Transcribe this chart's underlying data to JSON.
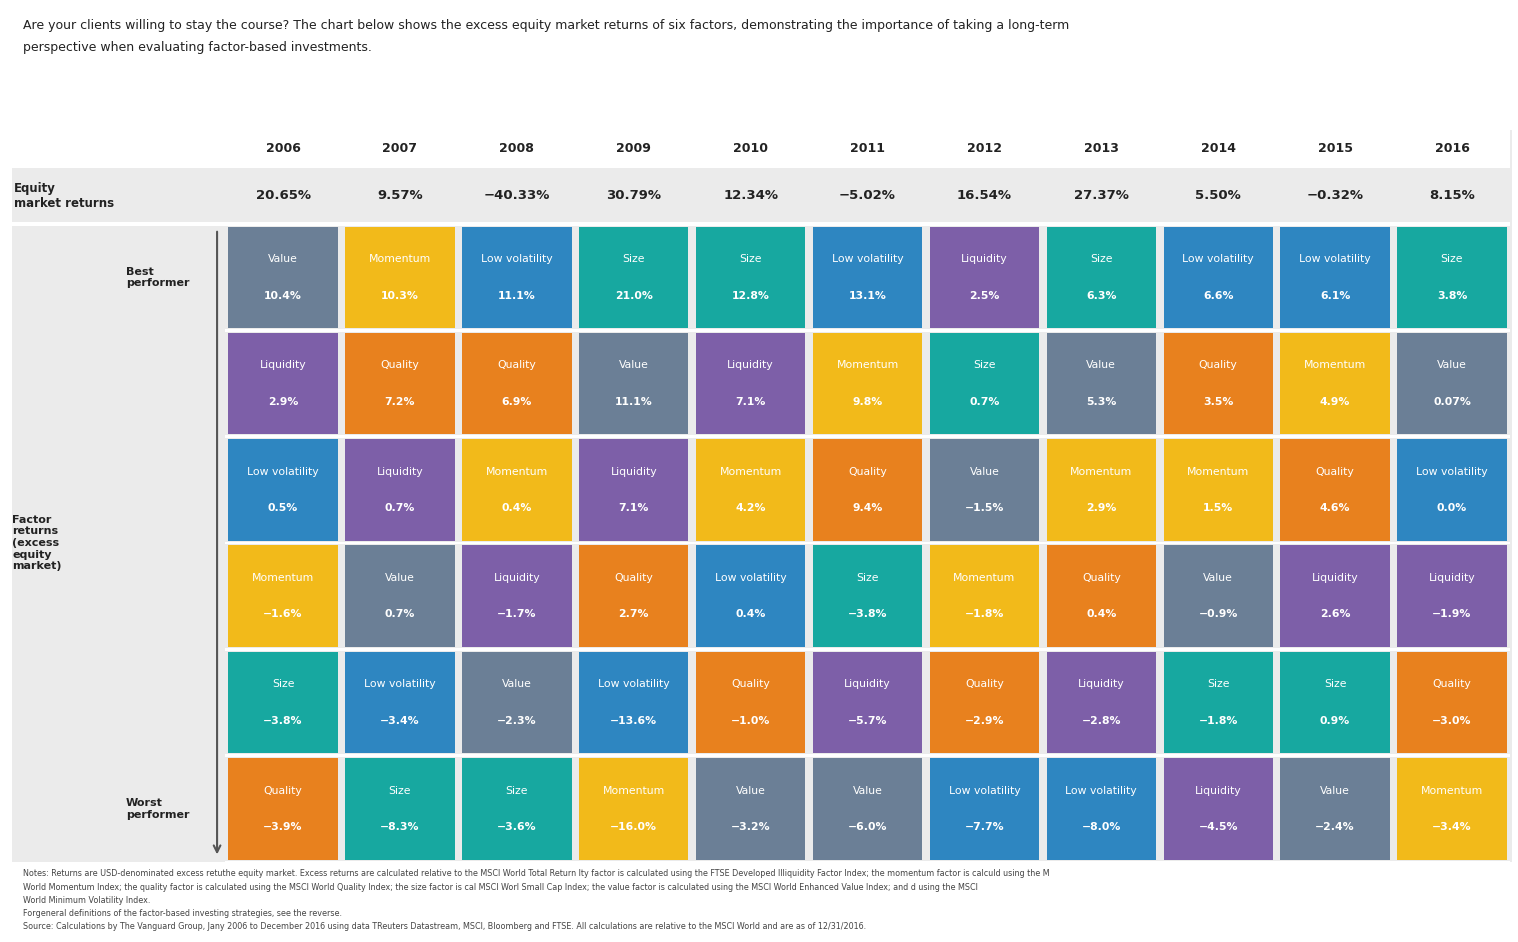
{
  "title_line1": "Are your clients willing to stay the course? The chart below shows the excess equity market returns of six factors, demonstrating the importance of taking a long-term",
  "title_line2": "perspective when evaluating factor-based investments.",
  "years": [
    "2006",
    "2007",
    "2008",
    "2009",
    "2010",
    "2011",
    "2012",
    "2013",
    "2014",
    "2015",
    "2016"
  ],
  "equity_returns": [
    "20.65%",
    "9.57%",
    "−40.33%",
    "30.79%",
    "12.34%",
    "−5.02%",
    "16.54%",
    "27.37%",
    "5.50%",
    "−0.32%",
    "8.15%"
  ],
  "colors": {
    "Value": "#6B7F96",
    "Momentum": "#F2BA1A",
    "Low volatility": "#2E86C1",
    "Size": "#17A8A0",
    "Liquidity": "#7D5FA8",
    "Quality": "#E8811E"
  },
  "grid": [
    [
      {
        "factor": "Value",
        "value": "10.4%"
      },
      {
        "factor": "Momentum",
        "value": "10.3%"
      },
      {
        "factor": "Low volatility",
        "value": "11.1%"
      },
      {
        "factor": "Size",
        "value": "21.0%"
      },
      {
        "factor": "Size",
        "value": "12.8%"
      },
      {
        "factor": "Low volatility",
        "value": "13.1%"
      },
      {
        "factor": "Liquidity",
        "value": "2.5%"
      },
      {
        "factor": "Size",
        "value": "6.3%"
      },
      {
        "factor": "Low volatility",
        "value": "6.6%"
      },
      {
        "factor": "Low volatility",
        "value": "6.1%"
      },
      {
        "factor": "Size",
        "value": "3.8%"
      }
    ],
    [
      {
        "factor": "Liquidity",
        "value": "2.9%"
      },
      {
        "factor": "Quality",
        "value": "7.2%"
      },
      {
        "factor": "Quality",
        "value": "6.9%"
      },
      {
        "factor": "Value",
        "value": "11.1%"
      },
      {
        "factor": "Liquidity",
        "value": "7.1%"
      },
      {
        "factor": "Momentum",
        "value": "9.8%"
      },
      {
        "factor": "Size",
        "value": "0.7%"
      },
      {
        "factor": "Value",
        "value": "5.3%"
      },
      {
        "factor": "Quality",
        "value": "3.5%"
      },
      {
        "factor": "Momentum",
        "value": "4.9%"
      },
      {
        "factor": "Value",
        "value": "0.07%"
      }
    ],
    [
      {
        "factor": "Low volatility",
        "value": "0.5%"
      },
      {
        "factor": "Liquidity",
        "value": "0.7%"
      },
      {
        "factor": "Momentum",
        "value": "0.4%"
      },
      {
        "factor": "Liquidity",
        "value": "7.1%"
      },
      {
        "factor": "Momentum",
        "value": "4.2%"
      },
      {
        "factor": "Quality",
        "value": "9.4%"
      },
      {
        "factor": "Value",
        "value": "−1.5%"
      },
      {
        "factor": "Momentum",
        "value": "2.9%"
      },
      {
        "factor": "Momentum",
        "value": "1.5%"
      },
      {
        "factor": "Quality",
        "value": "4.6%"
      },
      {
        "factor": "Low volatility",
        "value": "0.0%"
      }
    ],
    [
      {
        "factor": "Momentum",
        "value": "−1.6%"
      },
      {
        "factor": "Value",
        "value": "0.7%"
      },
      {
        "factor": "Liquidity",
        "value": "−1.7%"
      },
      {
        "factor": "Quality",
        "value": "2.7%"
      },
      {
        "factor": "Low volatility",
        "value": "0.4%"
      },
      {
        "factor": "Size",
        "value": "−3.8%"
      },
      {
        "factor": "Momentum",
        "value": "−1.8%"
      },
      {
        "factor": "Quality",
        "value": "0.4%"
      },
      {
        "factor": "Value",
        "value": "−0.9%"
      },
      {
        "factor": "Liquidity",
        "value": "2.6%"
      },
      {
        "factor": "Liquidity",
        "value": "−1.9%"
      }
    ],
    [
      {
        "factor": "Size",
        "value": "−3.8%"
      },
      {
        "factor": "Low volatility",
        "value": "−3.4%"
      },
      {
        "factor": "Value",
        "value": "−2.3%"
      },
      {
        "factor": "Low volatility",
        "value": "−13.6%"
      },
      {
        "factor": "Quality",
        "value": "−1.0%"
      },
      {
        "factor": "Liquidity",
        "value": "−5.7%"
      },
      {
        "factor": "Quality",
        "value": "−2.9%"
      },
      {
        "factor": "Liquidity",
        "value": "−2.8%"
      },
      {
        "factor": "Size",
        "value": "−1.8%"
      },
      {
        "factor": "Size",
        "value": "0.9%"
      },
      {
        "factor": "Quality",
        "value": "−3.0%"
      }
    ],
    [
      {
        "factor": "Quality",
        "value": "−3.9%"
      },
      {
        "factor": "Size",
        "value": "−8.3%"
      },
      {
        "factor": "Size",
        "value": "−3.6%"
      },
      {
        "factor": "Momentum",
        "value": "−16.0%"
      },
      {
        "factor": "Value",
        "value": "−3.2%"
      },
      {
        "factor": "Value",
        "value": "−6.0%"
      },
      {
        "factor": "Low volatility",
        "value": "−7.7%"
      },
      {
        "factor": "Low volatility",
        "value": "−8.0%"
      },
      {
        "factor": "Liquidity",
        "value": "−4.5%"
      },
      {
        "factor": "Value",
        "value": "−2.4%"
      },
      {
        "factor": "Momentum",
        "value": "−3.4%"
      }
    ]
  ],
  "footnote1": "Notes: Returns are USD-denominated excess retu⁠the equity market. Excess returns are calculated relative to the MSCI World Total Return I⁠⁠⁠⁠⁠⁠⁠⁠⁠⁠⁠⁠ty factor is calculated using the FTSE Developed Illiquidity Factor Index; the momentum factor is calcul⁠⁠⁠d using the M",
  "footnote2": "World Momentum Index; the quality factor is calculated using the MSCI World Quality Index; the size factor is cal⁠⁠⁠⁠⁠ MSCI Worl⁠⁠ Small Cap Index; the value factor is calculated using the MSCI World Enhanced Value Index; and ⁠⁠⁠⁠⁠⁠⁠⁠⁠⁠⁠⁠⁠⁠d using the MSCI",
  "footnote3": "World Minimum Volatility Index.",
  "footnote4": "For⁠general definitions of the factor-based investing strategies, see the reverse.",
  "footnote5": "Source: Calculations by The Vanguard Group, Jan⁠⁠⁠⁠⁠y 2006 to December 2016 using data T⁠⁠⁠⁠⁠⁠Reuters Datastream, MSCI, Bloomberg and FTSE. All calculations are relative to the MSCI World and are as of 12/31/2016."
}
